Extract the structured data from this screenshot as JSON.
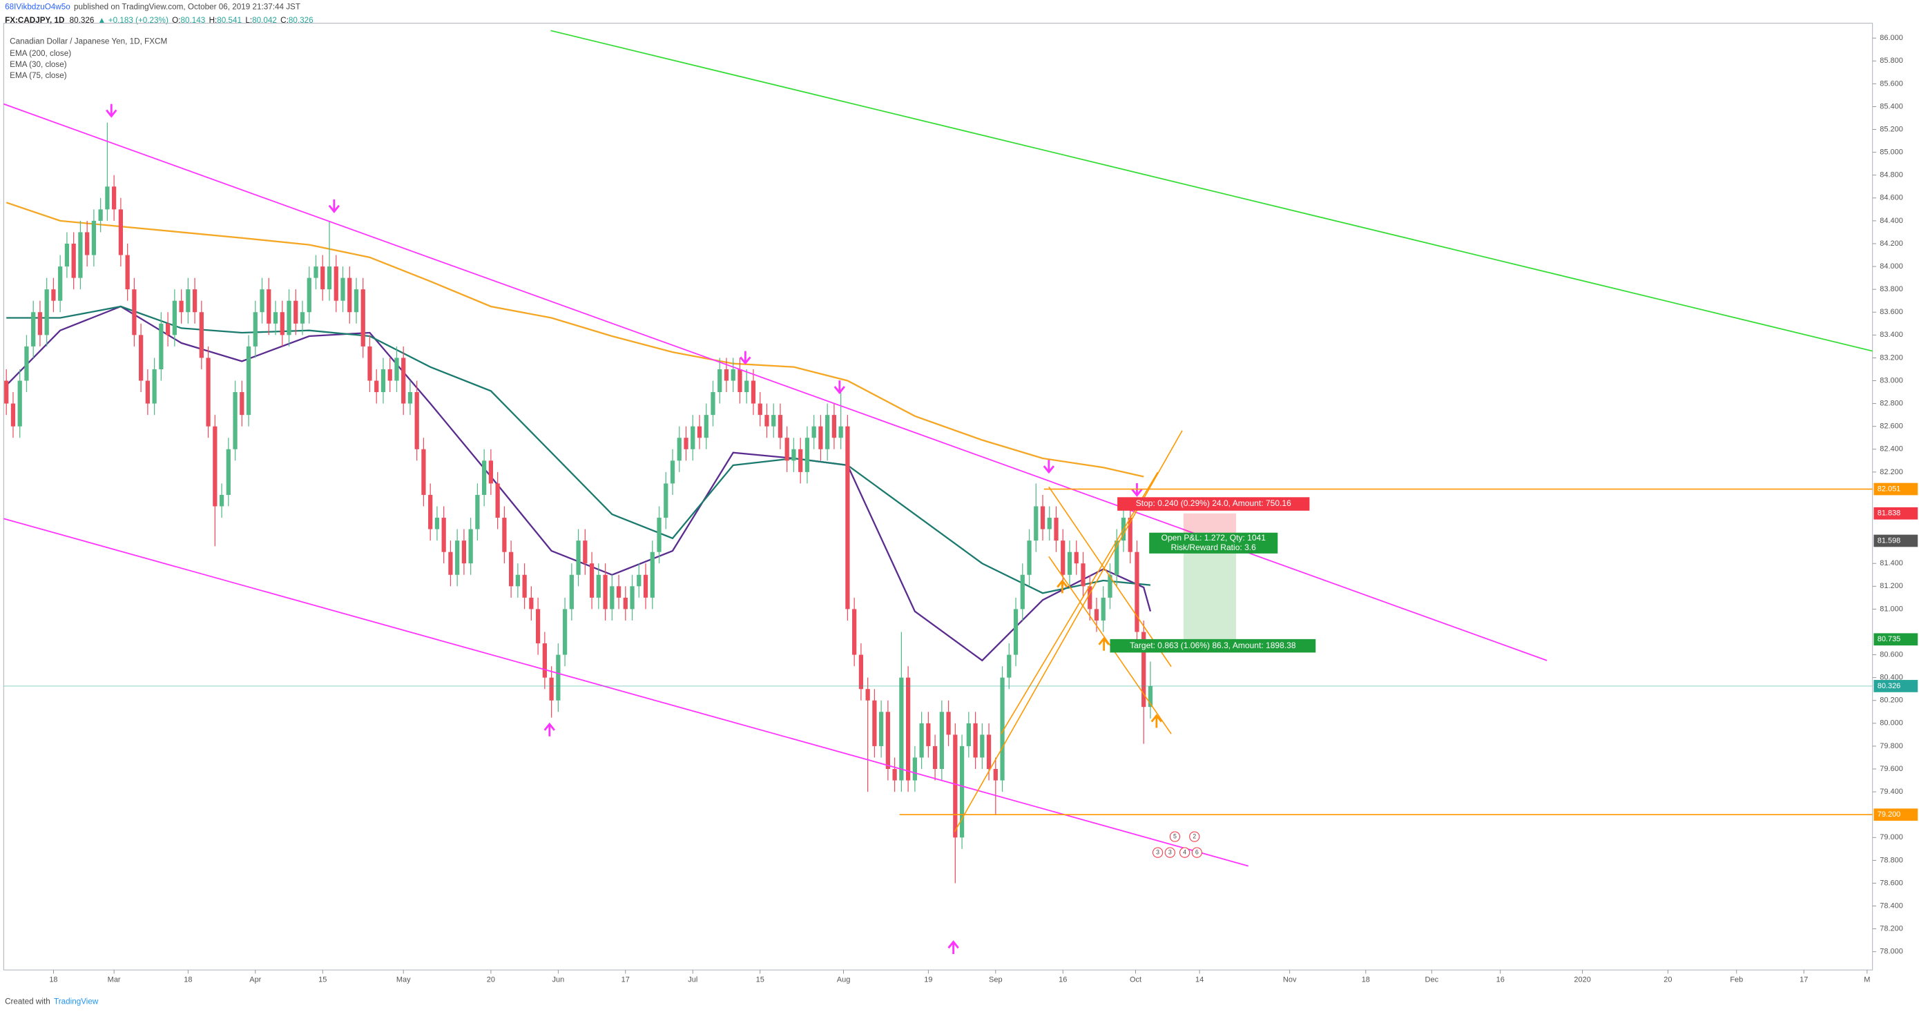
{
  "chart_data": {
    "type": "candlestick",
    "title": "Canadian Dollar / Japanese Yen, 1D, FXCM",
    "header": {
      "author": "68IVikbdzuO4w5o",
      "published": "published on TradingView.com, October 06, 2019 21:37:44 JST",
      "symbol": "FX:CADJPY, 1D",
      "arrow": "▲",
      "change": "+0.183 (+0.23%)",
      "ohlc_prefixes": [
        "O:",
        "H:",
        "L:",
        "C:"
      ]
    },
    "footer": {
      "text": "Created with",
      "brand": "TradingView"
    },
    "up_color": "#53b987",
    "down_color": "#eb4d5c",
    "grid": false,
    "xlim": [
      -0.4,
      277.3
    ],
    "ylim": [
      77.84,
      86.13
    ],
    "xticks": [
      {
        "value": 7,
        "label": "18"
      },
      {
        "value": 16,
        "label": "Mar"
      },
      {
        "value": 27,
        "label": "18"
      },
      {
        "value": 37,
        "label": "Apr"
      },
      {
        "value": 47,
        "label": "15"
      },
      {
        "value": 59,
        "label": "May"
      },
      {
        "value": 72,
        "label": "20"
      },
      {
        "value": 82,
        "label": "Jun"
      },
      {
        "value": 92,
        "label": "17"
      },
      {
        "value": 102,
        "label": "Jul"
      },
      {
        "value": 112,
        "label": "15"
      },
      {
        "value": 124.4,
        "label": "Aug"
      },
      {
        "value": 137,
        "label": "19"
      },
      {
        "value": 147,
        "label": "Sep"
      },
      {
        "value": 157,
        "label": "16"
      },
      {
        "value": 167.8,
        "label": "Oct"
      },
      {
        "value": 177.3,
        "label": "14"
      },
      {
        "value": 190.7,
        "label": "Nov"
      },
      {
        "value": 202,
        "label": "18"
      },
      {
        "value": 211.8,
        "label": "Dec"
      },
      {
        "value": 222,
        "label": "16"
      },
      {
        "value": 234.2,
        "label": "2020"
      },
      {
        "value": 246.9,
        "label": "20"
      },
      {
        "value": 257.1,
        "label": "Feb"
      },
      {
        "value": 267.1,
        "label": "17"
      },
      {
        "value": 276.5,
        "label": "M"
      }
    ],
    "yticks": [
      {
        "value": 78.0,
        "label": "78.000"
      },
      {
        "value": 78.2,
        "label": "78.200"
      },
      {
        "value": 78.4,
        "label": "78.400"
      },
      {
        "value": 78.6,
        "label": "78.600"
      },
      {
        "value": 78.8,
        "label": "78.800"
      },
      {
        "value": 79.0,
        "label": "79.000"
      },
      {
        "value": 79.4,
        "label": "79.400"
      },
      {
        "value": 79.6,
        "label": "79.600"
      },
      {
        "value": 79.8,
        "label": "79.800"
      },
      {
        "value": 80.0,
        "label": "80.000"
      },
      {
        "value": 80.2,
        "label": "80.200"
      },
      {
        "value": 80.4,
        "label": "80.400"
      },
      {
        "value": 80.6,
        "label": "80.600"
      },
      {
        "value": 81.0,
        "label": "81.000"
      },
      {
        "value": 81.2,
        "label": "81.200"
      },
      {
        "value": 81.4,
        "label": "81.400"
      },
      {
        "value": 82.2,
        "label": "82.200"
      },
      {
        "value": 82.4,
        "label": "82.400"
      },
      {
        "value": 82.6,
        "label": "82.600"
      },
      {
        "value": 82.8,
        "label": "82.800"
      },
      {
        "value": 83.0,
        "label": "83.000"
      },
      {
        "value": 83.2,
        "label": "83.200"
      },
      {
        "value": 83.4,
        "label": "83.400"
      },
      {
        "value": 83.6,
        "label": "83.600"
      },
      {
        "value": 83.8,
        "label": "83.800"
      },
      {
        "value": 84.0,
        "label": "84.000"
      },
      {
        "value": 84.2,
        "label": "84.200"
      },
      {
        "value": 84.4,
        "label": "84.400"
      },
      {
        "value": 84.6,
        "label": "84.600"
      },
      {
        "value": 84.8,
        "label": "84.800"
      },
      {
        "value": 85.0,
        "label": "85.000"
      },
      {
        "value": 85.2,
        "label": "85.200"
      },
      {
        "value": 85.4,
        "label": "85.400"
      },
      {
        "value": 85.6,
        "label": "85.600"
      },
      {
        "value": 85.8,
        "label": "85.800"
      },
      {
        "value": 86.0,
        "label": "86.000"
      }
    ],
    "open": [
      83.0,
      82.8,
      82.6,
      83.0,
      83.3,
      83.6,
      83.4,
      83.8,
      83.7,
      84.0,
      84.2,
      83.9,
      84.3,
      84.1,
      84.4,
      84.5,
      84.7,
      84.5,
      84.1,
      83.8,
      83.4,
      83.0,
      82.8,
      83.1,
      83.5,
      83.4,
      83.7,
      83.6,
      83.8,
      83.6,
      83.2,
      82.6,
      81.9,
      82.0,
      82.4,
      82.9,
      82.7,
      83.3,
      83.6,
      83.8,
      83.5,
      83.6,
      83.4,
      83.7,
      83.5,
      83.6,
      83.9,
      84.0,
      83.8,
      84.0,
      83.7,
      83.9,
      83.6,
      83.8,
      83.3,
      83.0,
      82.9,
      83.1,
      83.0,
      83.2,
      82.8,
      82.9,
      82.4,
      82.0,
      81.7,
      81.8,
      81.5,
      81.3,
      81.6,
      81.4,
      81.7,
      82.0,
      82.3,
      82.1,
      81.8,
      81.5,
      81.2,
      81.3,
      81.1,
      81.0,
      80.7,
      80.4,
      80.2,
      80.6,
      81.0,
      81.3,
      81.6,
      81.4,
      81.1,
      81.3,
      81.0,
      81.2,
      81.1,
      81.0,
      81.2,
      81.3,
      81.1,
      81.5,
      81.8,
      82.1,
      82.3,
      82.5,
      82.4,
      82.6,
      82.5,
      82.7,
      82.9,
      83.1,
      83.0,
      83.1,
      82.9,
      83.0,
      82.8,
      82.7,
      82.6,
      82.7,
      82.5,
      82.3,
      82.4,
      82.2,
      82.5,
      82.6,
      82.4,
      82.7,
      82.5,
      82.6,
      81.0,
      80.6,
      80.3,
      80.2,
      79.8,
      80.1,
      79.6,
      79.5,
      80.4,
      79.5,
      79.7,
      80.0,
      79.8,
      79.6,
      80.1,
      79.9,
      79.0,
      79.8,
      80.0,
      79.7,
      79.9,
      79.6,
      79.5,
      80.4,
      80.6,
      81.0,
      81.3,
      81.6,
      81.9,
      81.7,
      81.8,
      81.6,
      81.3,
      81.5,
      81.4,
      81.2,
      81.0,
      80.9,
      81.1,
      81.3,
      81.6,
      81.8,
      81.5,
      80.8,
      80.143
    ],
    "high": [
      83.1,
      82.9,
      83.1,
      83.4,
      83.7,
      83.7,
      83.9,
      83.9,
      84.1,
      84.3,
      84.3,
      84.4,
      84.4,
      84.5,
      84.6,
      85.26,
      84.8,
      84.6,
      84.2,
      83.9,
      83.5,
      83.1,
      83.2,
      83.6,
      83.6,
      83.8,
      83.8,
      83.9,
      83.9,
      83.7,
      83.3,
      82.7,
      82.1,
      82.5,
      83.0,
      83.0,
      83.4,
      83.7,
      83.9,
      83.9,
      83.7,
      83.7,
      83.8,
      83.8,
      83.7,
      84.0,
      84.1,
      84.1,
      84.4,
      84.1,
      84.0,
      84.0,
      83.9,
      83.9,
      83.4,
      83.1,
      83.2,
      83.2,
      83.3,
      83.3,
      83.0,
      83.0,
      82.5,
      82.1,
      81.9,
      81.9,
      81.6,
      81.7,
      81.7,
      81.8,
      82.1,
      82.4,
      82.4,
      82.2,
      81.9,
      81.6,
      81.4,
      81.4,
      81.2,
      81.1,
      80.8,
      80.5,
      80.7,
      81.1,
      81.4,
      81.7,
      81.7,
      81.5,
      81.4,
      81.4,
      81.3,
      81.3,
      81.2,
      81.3,
      81.4,
      81.4,
      81.6,
      81.9,
      82.2,
      82.4,
      82.6,
      82.6,
      82.7,
      82.7,
      82.8,
      83.0,
      83.2,
      83.2,
      83.2,
      83.2,
      83.1,
      83.1,
      82.9,
      82.8,
      82.8,
      82.8,
      82.6,
      82.5,
      82.5,
      82.6,
      82.7,
      82.7,
      82.8,
      82.8,
      82.9,
      82.7,
      81.1,
      80.7,
      80.4,
      80.3,
      80.2,
      80.2,
      79.7,
      80.8,
      80.5,
      79.8,
      80.1,
      80.1,
      79.9,
      80.2,
      80.2,
      80.0,
      79.9,
      80.1,
      80.1,
      80.0,
      80.0,
      79.7,
      80.5,
      80.7,
      81.1,
      81.4,
      81.7,
      82.1,
      82.0,
      81.9,
      81.9,
      81.7,
      81.6,
      81.6,
      81.5,
      81.3,
      81.1,
      81.2,
      81.4,
      81.7,
      81.9,
      81.9,
      81.6,
      80.9,
      80.541
    ],
    "low": [
      82.7,
      82.5,
      82.5,
      82.9,
      83.2,
      83.3,
      83.3,
      83.6,
      83.6,
      83.9,
      83.8,
      83.8,
      84.0,
      84.0,
      84.3,
      84.4,
      84.4,
      84.0,
      83.7,
      83.3,
      82.9,
      82.7,
      82.7,
      83.0,
      83.3,
      83.3,
      83.5,
      83.5,
      83.5,
      83.1,
      82.5,
      81.55,
      81.8,
      81.9,
      82.3,
      82.6,
      82.6,
      83.2,
      83.5,
      83.4,
      83.4,
      83.3,
      83.3,
      83.4,
      83.4,
      83.5,
      83.8,
      83.7,
      83.7,
      83.6,
      83.6,
      83.5,
      83.5,
      83.2,
      82.9,
      82.8,
      82.8,
      82.9,
      82.9,
      82.7,
      82.7,
      82.3,
      81.9,
      81.6,
      81.6,
      81.4,
      81.2,
      81.2,
      81.3,
      81.3,
      81.6,
      81.9,
      82.0,
      81.7,
      81.4,
      81.1,
      81.1,
      81.0,
      80.9,
      80.6,
      80.3,
      80.05,
      80.1,
      80.5,
      80.9,
      81.2,
      81.3,
      81.0,
      81.0,
      80.9,
      80.9,
      81.0,
      80.9,
      80.9,
      81.1,
      81.0,
      81.0,
      81.4,
      81.7,
      82.0,
      82.2,
      82.3,
      82.3,
      82.4,
      82.4,
      82.6,
      82.8,
      82.9,
      82.9,
      82.8,
      82.8,
      82.7,
      82.6,
      82.5,
      82.5,
      82.4,
      82.2,
      82.2,
      82.1,
      82.1,
      82.4,
      82.3,
      82.3,
      82.4,
      82.4,
      80.9,
      80.5,
      80.2,
      79.4,
      79.7,
      79.7,
      79.5,
      79.4,
      79.4,
      79.4,
      79.4,
      79.6,
      79.7,
      79.5,
      79.5,
      79.8,
      78.6,
      78.9,
      79.7,
      79.6,
      79.6,
      79.5,
      79.2,
      79.4,
      80.3,
      80.5,
      80.9,
      81.2,
      81.5,
      81.6,
      81.6,
      81.5,
      81.2,
      81.2,
      81.3,
      81.1,
      80.9,
      80.8,
      80.8,
      81.0,
      81.2,
      81.5,
      81.4,
      80.7,
      79.82,
      80.042
    ],
    "close": [
      82.8,
      82.6,
      83.0,
      83.3,
      83.6,
      83.4,
      83.8,
      83.7,
      84.0,
      84.2,
      83.9,
      84.3,
      84.1,
      84.4,
      84.5,
      84.7,
      84.5,
      84.1,
      83.8,
      83.4,
      83.0,
      82.8,
      83.1,
      83.5,
      83.4,
      83.7,
      83.6,
      83.8,
      83.6,
      83.2,
      82.6,
      81.9,
      82.0,
      82.4,
      82.9,
      82.7,
      83.3,
      83.6,
      83.8,
      83.5,
      83.6,
      83.4,
      83.7,
      83.5,
      83.6,
      83.9,
      84.0,
      83.8,
      84.0,
      83.7,
      83.9,
      83.6,
      83.8,
      83.3,
      83.0,
      82.9,
      83.1,
      83.0,
      83.2,
      82.8,
      82.9,
      82.4,
      82.0,
      81.7,
      81.8,
      81.5,
      81.3,
      81.6,
      81.4,
      81.7,
      82.0,
      82.3,
      82.1,
      81.8,
      81.5,
      81.2,
      81.3,
      81.1,
      81.0,
      80.7,
      80.4,
      80.2,
      80.6,
      81.0,
      81.3,
      81.6,
      81.4,
      81.1,
      81.3,
      81.0,
      81.2,
      81.1,
      81.0,
      81.2,
      81.3,
      81.1,
      81.5,
      81.8,
      82.1,
      82.3,
      82.5,
      82.4,
      82.6,
      82.5,
      82.7,
      82.9,
      83.1,
      83.0,
      83.1,
      82.9,
      83.0,
      82.8,
      82.7,
      82.6,
      82.7,
      82.5,
      82.3,
      82.4,
      82.2,
      82.5,
      82.6,
      82.4,
      82.7,
      82.5,
      82.6,
      81.0,
      80.6,
      80.3,
      80.2,
      79.8,
      80.1,
      79.6,
      79.5,
      80.4,
      79.5,
      79.7,
      80.0,
      79.8,
      79.6,
      80.1,
      79.9,
      79.0,
      79.8,
      80.0,
      79.7,
      79.9,
      79.6,
      79.5,
      80.4,
      80.6,
      81.0,
      81.3,
      81.6,
      81.9,
      81.7,
      81.8,
      81.6,
      81.3,
      81.5,
      81.4,
      81.2,
      81.0,
      80.9,
      81.1,
      81.3,
      81.6,
      81.8,
      81.5,
      80.8,
      80.143,
      80.326
    ],
    "ema": [
      {
        "name": "EMA (200, close)",
        "color": "#f5a623",
        "x": [
          0,
          8,
          17,
          26,
          35,
          45,
          54,
          63,
          72,
          81,
          90,
          99,
          108,
          117,
          125,
          135,
          145,
          154,
          163,
          169
        ],
        "values": [
          84.56,
          84.4,
          84.35,
          84.3,
          84.25,
          84.19,
          84.08,
          83.87,
          83.65,
          83.55,
          83.39,
          83.25,
          83.15,
          83.12,
          83.0,
          82.69,
          82.48,
          82.32,
          82.24,
          82.16
        ]
      },
      {
        "name": "EMA (30, close)",
        "color": "#5b2c8f",
        "x": [
          0,
          8,
          17,
          26,
          35,
          45,
          54,
          63,
          72,
          81,
          90,
          99,
          108,
          117,
          125,
          135,
          145,
          154,
          163,
          169,
          170
        ],
        "values": [
          82.96,
          83.44,
          83.65,
          83.33,
          83.17,
          83.39,
          83.42,
          82.8,
          82.16,
          81.51,
          81.3,
          81.51,
          82.37,
          82.32,
          82.26,
          80.98,
          80.55,
          81.08,
          81.35,
          81.19,
          80.98
        ]
      },
      {
        "name": "EMA (75, close)",
        "color": "#1b7a6e",
        "x": [
          0,
          8,
          17,
          26,
          35,
          45,
          54,
          63,
          72,
          81,
          90,
          99,
          108,
          117,
          125,
          135,
          145,
          154,
          163,
          170
        ],
        "values": [
          83.55,
          83.55,
          83.65,
          83.46,
          83.42,
          83.44,
          83.39,
          83.12,
          82.91,
          82.37,
          81.83,
          81.62,
          82.26,
          82.32,
          82.26,
          81.83,
          81.4,
          81.14,
          81.25,
          81.21
        ]
      }
    ],
    "price_labels": [
      {
        "value": 82.051,
        "color": "#ff9800"
      },
      {
        "value": 81.838,
        "color": "#f23645"
      },
      {
        "value": 81.598,
        "color": "#555555"
      },
      {
        "value": 80.735,
        "color": "#1e9e3a"
      },
      {
        "value": 80.326,
        "color": "#26a69a"
      },
      {
        "value": 79.2,
        "label": "79.200",
        "color": "#ff9800"
      }
    ],
    "position": {
      "stop": "Stop: 0.240 (0.29%) 24.0, Amount: 750.16",
      "pnl": "Open P&L: 1.272, Qty: 1041",
      "ratio": "Risk/Reward Ratio: 3.6",
      "target": "Target: 0.863 (1.06%) 86.3, Amount: 1898.38"
    },
    "event_labels": [
      "5",
      "2",
      "3",
      "3",
      "4",
      "6"
    ]
  }
}
